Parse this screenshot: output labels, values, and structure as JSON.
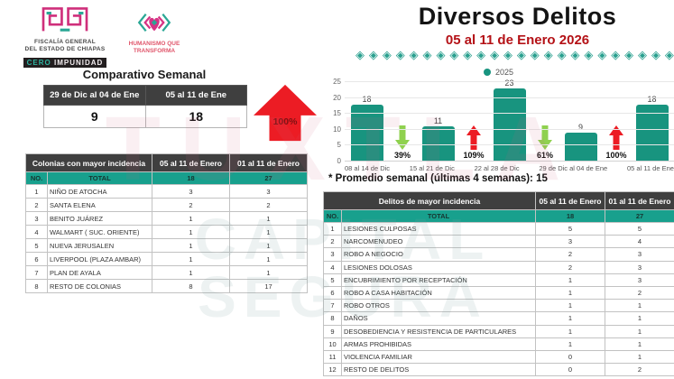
{
  "branding": {
    "fiscalia_line1": "FISCALÍA GENERAL",
    "fiscalia_line2": "DEL ESTADO DE CHIAPAS",
    "cero": "CERO",
    "impunidad": "IMPUNIDAD",
    "humanismo_line1": "HUMANISMO QUE",
    "humanismo_line2": "TRANSFORMA"
  },
  "header": {
    "title": "Diversos Delitos",
    "subtitle": "05 al 11 de Enero 2026",
    "divider_glyph": "◈",
    "divider_count": 24
  },
  "watermark": {
    "line1": "TUXTLA",
    "line2": "CAPITAL SEGURA"
  },
  "comparativo": {
    "title": "Comparativo Semanal",
    "col1_label": "29 de Dic al 04 de Ene",
    "col2_label": "05 al 11 de Ene",
    "col1_value": "9",
    "col2_value": "18",
    "change_pct": "100%",
    "change_direction": "up"
  },
  "colonias": {
    "header_label": "Colonias  con mayor incidencia",
    "no_label": "NO.",
    "total_label": "TOTAL",
    "col_week_label": "05 al 11 de Enero",
    "col_range_label": "01 al 11 de Enero",
    "total_week": "18",
    "total_range": "27",
    "rows": [
      {
        "no": "1",
        "name": "NIÑO DE ATOCHA",
        "week": "3",
        "range": "3"
      },
      {
        "no": "2",
        "name": "SANTA ELENA",
        "week": "2",
        "range": "2"
      },
      {
        "no": "3",
        "name": "BENITO JUÁREZ",
        "week": "1",
        "range": "1"
      },
      {
        "no": "4",
        "name": "WALMART ( SUC. ORIENTE)",
        "week": "1",
        "range": "1"
      },
      {
        "no": "5",
        "name": "NUEVA JERUSALEN",
        "week": "1",
        "range": "1"
      },
      {
        "no": "6",
        "name": "LIVERPOOL (PLAZA AMBAR)",
        "week": "1",
        "range": "1"
      },
      {
        "no": "7",
        "name": "PLAN DE AYALA",
        "week": "1",
        "range": "1"
      },
      {
        "no": "8",
        "name": "RESTO DE COLONIAS",
        "week": "8",
        "range": "17"
      }
    ]
  },
  "chart_data": {
    "type": "bar",
    "title": "",
    "legend": "2025",
    "categories": [
      "08 al 14 de Dic",
      "15 al 21 de Dic",
      "22 al 28 de Dic",
      "29 de Dic al 04 de Ene",
      "05 al 11 de Ene"
    ],
    "values": [
      18,
      11,
      23,
      9,
      18
    ],
    "changes": [
      {
        "pct": "39%",
        "dir": "down"
      },
      {
        "pct": "109%",
        "dir": "up"
      },
      {
        "pct": "61%",
        "dir": "down"
      },
      {
        "pct": "100%",
        "dir": "up"
      }
    ],
    "ylim": [
      0,
      25
    ],
    "yticks": [
      0,
      5,
      10,
      15,
      20,
      25
    ],
    "grid": true,
    "legend_position": "top-center",
    "footnote": "* Promedio semanal (últimas 4 semanas): 15"
  },
  "delitos": {
    "header_label": "Delitos de mayor incidencia",
    "no_label": "NO.",
    "total_label": "TOTAL",
    "col_week_label": "05 al 11 de Enero",
    "col_range_label": "01 al 11 de Enero",
    "total_week": "18",
    "total_range": "27",
    "rows": [
      {
        "no": "1",
        "name": "LESIONES CULPOSAS",
        "week": "5",
        "range": "5"
      },
      {
        "no": "2",
        "name": "NARCOMENUDEO",
        "week": "3",
        "range": "4"
      },
      {
        "no": "3",
        "name": "ROBO A NEGOCIO",
        "week": "2",
        "range": "3"
      },
      {
        "no": "4",
        "name": "LESIONES DOLOSAS",
        "week": "2",
        "range": "3"
      },
      {
        "no": "5",
        "name": "ENCUBRIMIENTO POR RECEPTACIÓN",
        "week": "1",
        "range": "3"
      },
      {
        "no": "6",
        "name": "ROBO A CASA HABITACIÓN",
        "week": "1",
        "range": "2"
      },
      {
        "no": "7",
        "name": "ROBO OTROS",
        "week": "1",
        "range": "1"
      },
      {
        "no": "8",
        "name": "DAÑOS",
        "week": "1",
        "range": "1"
      },
      {
        "no": "9",
        "name": "DESOBEDIENCIA Y RESISTENCIA DE PARTICULARES",
        "week": "1",
        "range": "1"
      },
      {
        "no": "10",
        "name": "ARMAS PROHIBIDAS",
        "week": "1",
        "range": "1"
      },
      {
        "no": "11",
        "name": "VIOLENCIA FAMILIAR",
        "week": "0",
        "range": "1"
      },
      {
        "no": "12",
        "name": "RESTO DE DELITOS",
        "week": "0",
        "range": "2"
      }
    ]
  },
  "colors": {
    "teal": "#18947F",
    "teal_row": "#18A08D",
    "dark_header": "#3F3F3F",
    "red_arrow": "#EC1C24",
    "green_arrow": "#8FD14F",
    "subtitle_red": "#B41116",
    "magenta_logo": "#CF2F7B"
  }
}
